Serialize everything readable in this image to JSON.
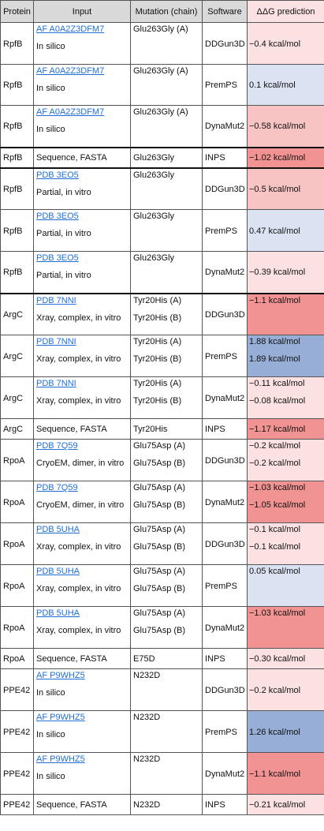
{
  "header": {
    "protein": "Protein",
    "input": "Input",
    "mutation": "Mutation (chain)",
    "software": "Software",
    "prediction": "ΔΔG prediction"
  },
  "colors": {
    "lightred": "#fbe1e1",
    "red": "#f8c3c3",
    "strongred": "#f29393",
    "lightblue": "#dbe3f2",
    "strongblue": "#97aed6",
    "link": "#1f6fd6",
    "header_bg": "#d9d9d9"
  },
  "rows": [
    {
      "protein": "RpfB",
      "link": "AF A0A2Z3DFM7",
      "input": "In silico",
      "mut": [
        "Glu263Gly (A)"
      ],
      "software": "DDGun3D",
      "pred": [
        "−0.4 kcal/mol"
      ],
      "color": "lightred",
      "h": 54
    },
    {
      "protein": "RpfB",
      "link": "AF A0A2Z3DFM7",
      "input": "In silico",
      "mut": [
        "Glu263Gly (A)"
      ],
      "software": "PremPS",
      "pred": [
        "0.1 kcal/mol"
      ],
      "color": "lightblue",
      "h": 53
    },
    {
      "protein": "RpfB",
      "link": "AF A0A2Z3DFM7",
      "input": "In silico",
      "mut": [
        "Glu263Gly (A)"
      ],
      "software": "DynaMut2",
      "pred": [
        "−0.58 kcal/mol"
      ],
      "color": "red",
      "h": 54
    },
    {
      "protein": "RpfB",
      "link": "",
      "input": "Sequence, FASTA",
      "mut": [
        "Glu263Gly"
      ],
      "software": "INPS",
      "pred": [
        "−1.02 kcal/mol"
      ],
      "color": "strongred",
      "h": 27,
      "thick": true
    },
    {
      "protein": "RpfB",
      "link": "PDB 3EO5",
      "input": "Partial, in vitro",
      "mut": [
        "Glu263Gly"
      ],
      "software": "DDGun3D",
      "pred": [
        "−0.5 kcal/mol"
      ],
      "color": "red",
      "h": 54,
      "thick": true
    },
    {
      "protein": "RpfB",
      "link": "PDB 3EO5",
      "input": "Partial, in vitro",
      "mut": [
        "Glu263Gly"
      ],
      "software": "PremPS",
      "pred": [
        "0.47 kcal/mol"
      ],
      "color": "lightblue",
      "h": 54
    },
    {
      "protein": "RpfB",
      "link": "PDB 3EO5",
      "input": "Partial, in vitro",
      "mut": [
        "Glu263Gly"
      ],
      "software": "DynaMut2",
      "pred": [
        "−0.39 kcal/mol"
      ],
      "color": "lightred",
      "h": 54
    },
    {
      "protein": "ArgC",
      "link": "PDB 7NNI",
      "input": "Xray, complex, in vitro",
      "mut": [
        "Tyr20His (A)",
        "Tyr20His (B)"
      ],
      "software": "DDGun3D",
      "pred": [
        "−1.1 kcal/mol"
      ],
      "color": "strongred",
      "h": 54,
      "thick": true
    },
    {
      "protein": "ArgC",
      "link": "PDB 7NNI",
      "input": "Xray, complex, in vitro",
      "mut": [
        "Tyr20His (A)",
        "Tyr20His (B)"
      ],
      "software": "PremPS",
      "pred": [
        "1.88 kcal/mol",
        "1.89 kcal/mol"
      ],
      "color": "strongblue",
      "h": 54
    },
    {
      "protein": "ArgC",
      "link": "PDB 7NNI",
      "input": "Xray, complex, in vitro",
      "mut": [
        "Tyr20His (A)",
        "Tyr20His (B)"
      ],
      "software": "DynaMut2",
      "pred": [
        "−0.11 kcal/mol",
        "−0.08 kcal/mol"
      ],
      "color": "lightred",
      "h": 54
    },
    {
      "protein": "ArgC",
      "link": "",
      "input": "Sequence, FASTA",
      "mut": [
        "Tyr20His"
      ],
      "software": "INPS",
      "pred": [
        "−1.17 kcal/mol"
      ],
      "color": "strongred",
      "h": 27
    },
    {
      "protein": "RpoA",
      "link": "PDB 7Q59",
      "input": "CryoEM, dimer, in vitro",
      "mut": [
        "Glu75Asp (A)",
        "Glu75Asp (B)"
      ],
      "software": "DDGun3D",
      "pred": [
        "−0.2 kcal/mol",
        "−0.2 kcal/mol"
      ],
      "color": "lightred",
      "h": 54
    },
    {
      "protein": "RpoA",
      "link": "PDB 7Q59",
      "input": "CryoEM, dimer, in vitro",
      "mut": [
        "Glu75Asp (A)",
        "Glu75Asp (B)"
      ],
      "software": "DynaMut2",
      "pred": [
        "−1.03 kcal/mol",
        "−1.05 kcal/mol"
      ],
      "color": "strongred",
      "h": 54
    },
    {
      "protein": "RpoA",
      "link": "PDB 5UHA",
      "input": "Xray, complex, in vitro",
      "mut": [
        "Glu75Asp (A)",
        "Glu75Asp (B)"
      ],
      "software": "DDGun3D",
      "pred": [
        "−0.1 kcal/mol",
        "−0.1 kcal/mol"
      ],
      "color": "lightred",
      "h": 54
    },
    {
      "protein": "RpoA",
      "link": "PDB 5UHA",
      "input": "Xray, complex, in vitro",
      "mut": [
        "Glu75Asp (A)",
        "Glu75Asp (B)"
      ],
      "software": "PremPS",
      "pred": [
        "0.05 kcal/mol"
      ],
      "color": "lightblue",
      "h": 54
    },
    {
      "protein": "RpoA",
      "link": "PDB 5UHA",
      "input": "Xray, complex, in vitro",
      "mut": [
        "Glu75Asp (A)",
        "Glu75Asp (B)"
      ],
      "software": "DynaMut2",
      "pred": [
        "−1.03 kcal/mol"
      ],
      "color": "strongred",
      "h": 54
    },
    {
      "protein": "RpoA",
      "link": "",
      "input": "Sequence, FASTA",
      "mut": [
        "E75D"
      ],
      "software": "INPS",
      "pred": [
        "−0.30 kcal/mol"
      ],
      "color": "lightred",
      "h": 27
    },
    {
      "protein": "PPE42",
      "link": "AF P9WHZ5",
      "input": "In silico",
      "mut": [
        "N232D"
      ],
      "software": "DDGun3D",
      "pred": [
        "−0.2 kcal/mol"
      ],
      "color": "lightred",
      "h": 54
    },
    {
      "protein": "PPE42",
      "link": "AF P9WHZ5",
      "input": "In silico",
      "mut": [
        "N232D"
      ],
      "software": "PremPS",
      "pred": [
        "1.26 kcal/mol"
      ],
      "color": "strongblue",
      "h": 54
    },
    {
      "protein": "PPE42",
      "link": "AF P9WHZ5",
      "input": "In silico",
      "mut": [
        "N232D"
      ],
      "software": "DynaMut2",
      "pred": [
        "−1.1 kcal/mol"
      ],
      "color": "strongred",
      "h": 54
    },
    {
      "protein": "PPE42",
      "link": "",
      "input": "Sequence, FASTA",
      "mut": [
        "N232D"
      ],
      "software": "INPS",
      "pred": [
        "−0.21 kcal/mol"
      ],
      "color": "lightred",
      "h": 27
    }
  ]
}
